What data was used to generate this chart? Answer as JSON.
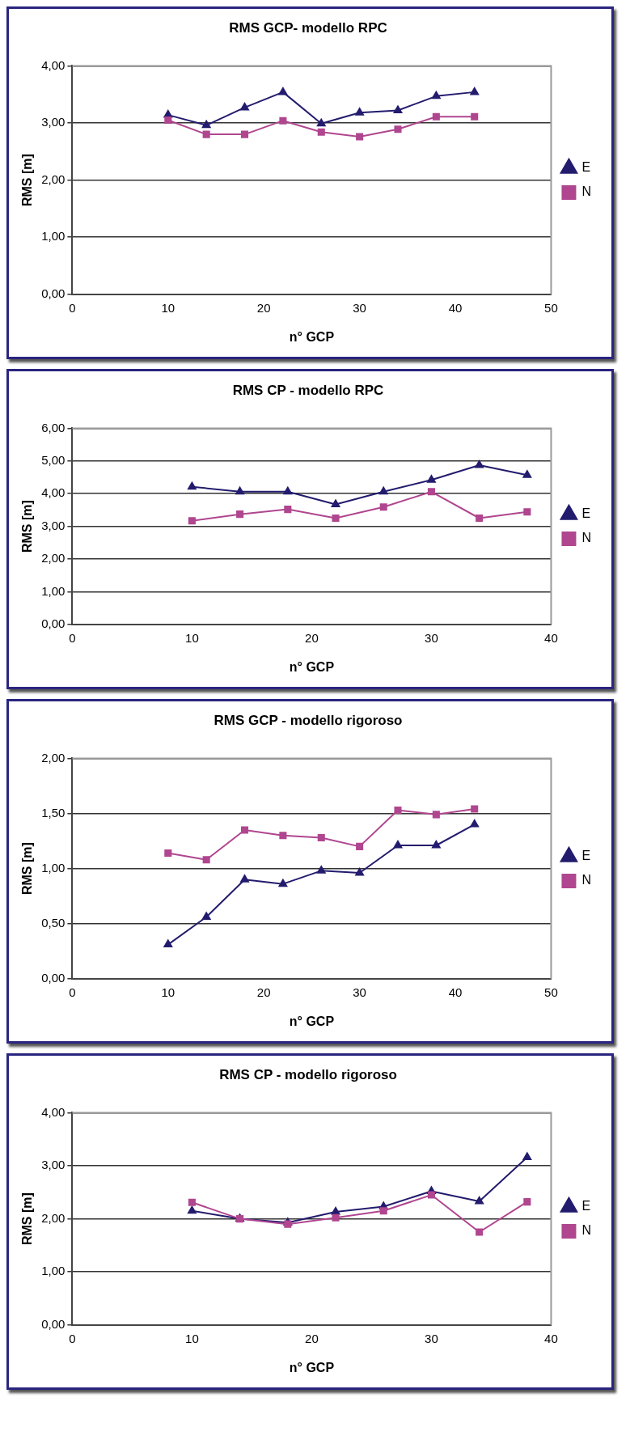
{
  "chart_data": [
    {
      "type": "line",
      "title": "RMS GCP- modello RPC",
      "xlabel": "n° GCP",
      "ylabel": "RMS [m]",
      "x": [
        10,
        14,
        18,
        22,
        26,
        30,
        34,
        38,
        42
      ],
      "xlim": [
        0,
        50
      ],
      "xticks": [
        0,
        10,
        20,
        30,
        40,
        50
      ],
      "ylim": [
        0,
        4
      ],
      "yticks": [
        {
          "value": 0,
          "label": "0,00"
        },
        {
          "value": 1,
          "label": "1,00"
        },
        {
          "value": 2,
          "label": "2,00"
        },
        {
          "value": 3,
          "label": "3,00"
        },
        {
          "value": 4,
          "label": "4,00"
        }
      ],
      "grid": "y",
      "legend": "right",
      "line_style": "solid",
      "series": [
        {
          "name": "E",
          "color": "#231c6e",
          "marker": "triangle",
          "values": [
            3.14,
            2.96,
            3.27,
            3.54,
            2.99,
            3.18,
            3.22,
            3.47,
            3.54
          ]
        },
        {
          "name": "N",
          "color": "#b0468f",
          "marker": "square",
          "values": [
            3.05,
            2.8,
            2.8,
            3.04,
            2.84,
            2.76,
            2.89,
            3.11,
            3.11
          ]
        }
      ]
    },
    {
      "type": "line",
      "title": "RMS CP - modello RPC",
      "xlabel": "n° GCP",
      "ylabel": "RMS [m]",
      "x": [
        10,
        14,
        18,
        22,
        26,
        30,
        34,
        38
      ],
      "xlim": [
        0,
        40
      ],
      "xticks": [
        0,
        10,
        20,
        30,
        40
      ],
      "ylim": [
        0,
        6
      ],
      "yticks": [
        {
          "value": 0,
          "label": "0,00"
        },
        {
          "value": 1,
          "label": "1,00"
        },
        {
          "value": 2,
          "label": "2,00"
        },
        {
          "value": 3,
          "label": "3,00"
        },
        {
          "value": 4,
          "label": "4,00"
        },
        {
          "value": 5,
          "label": "5,00"
        },
        {
          "value": 6,
          "label": "6,00"
        }
      ],
      "grid": "y",
      "legend": "right",
      "line_style": "solid",
      "series": [
        {
          "name": "E",
          "color": "#231c6e",
          "marker": "triangle",
          "values": [
            4.21,
            4.06,
            4.06,
            3.67,
            4.06,
            4.42,
            4.87,
            4.57
          ]
        },
        {
          "name": "N",
          "color": "#b0468f",
          "marker": "square",
          "values": [
            3.17,
            3.37,
            3.52,
            3.25,
            3.59,
            4.06,
            3.25,
            3.44
          ]
        }
      ]
    },
    {
      "type": "line",
      "title": "RMS GCP - modello rigoroso",
      "xlabel": "n° GCP",
      "ylabel": "RMS [m]",
      "x": [
        10,
        14,
        18,
        22,
        26,
        30,
        34,
        38,
        42
      ],
      "xlim": [
        0,
        50
      ],
      "xticks": [
        0,
        10,
        20,
        30,
        40,
        50
      ],
      "ylim": [
        0,
        2
      ],
      "yticks": [
        {
          "value": 0,
          "label": "0,00"
        },
        {
          "value": 0.5,
          "label": "0,50"
        },
        {
          "value": 1,
          "label": "1,00"
        },
        {
          "value": 1.5,
          "label": "1,50"
        },
        {
          "value": 2,
          "label": "2,00"
        }
      ],
      "grid": "y",
      "legend": "right",
      "line_style": "solid",
      "series": [
        {
          "name": "E",
          "color": "#231c6e",
          "marker": "triangle",
          "values": [
            0.31,
            0.56,
            0.9,
            0.86,
            0.98,
            0.96,
            1.21,
            1.21,
            1.4
          ]
        },
        {
          "name": "N",
          "color": "#b0468f",
          "marker": "square",
          "values": [
            1.14,
            1.08,
            1.35,
            1.3,
            1.28,
            1.2,
            1.53,
            1.49,
            1.54
          ]
        }
      ]
    },
    {
      "type": "line",
      "title": "RMS CP - modello rigoroso",
      "xlabel": "n° GCP",
      "ylabel": "RMS [m]",
      "x": [
        10,
        14,
        18,
        22,
        26,
        30,
        34,
        38
      ],
      "xlim": [
        0,
        40
      ],
      "xticks": [
        0,
        10,
        20,
        30,
        40
      ],
      "ylim": [
        0,
        4
      ],
      "yticks": [
        {
          "value": 0,
          "label": "0,00"
        },
        {
          "value": 1,
          "label": "1,00"
        },
        {
          "value": 2,
          "label": "2,00"
        },
        {
          "value": 3,
          "label": "3,00"
        },
        {
          "value": 4,
          "label": "4,00"
        }
      ],
      "grid": "y",
      "legend": "right",
      "line_style": "solid",
      "series": [
        {
          "name": "E",
          "color": "#231c6e",
          "marker": "triangle",
          "values": [
            2.15,
            2.0,
            1.93,
            2.13,
            2.23,
            2.52,
            2.33,
            3.16
          ]
        },
        {
          "name": "N",
          "color": "#b0468f",
          "marker": "square",
          "values": [
            2.31,
            2.0,
            1.9,
            2.02,
            2.15,
            2.45,
            1.75,
            2.32
          ]
        }
      ]
    }
  ]
}
